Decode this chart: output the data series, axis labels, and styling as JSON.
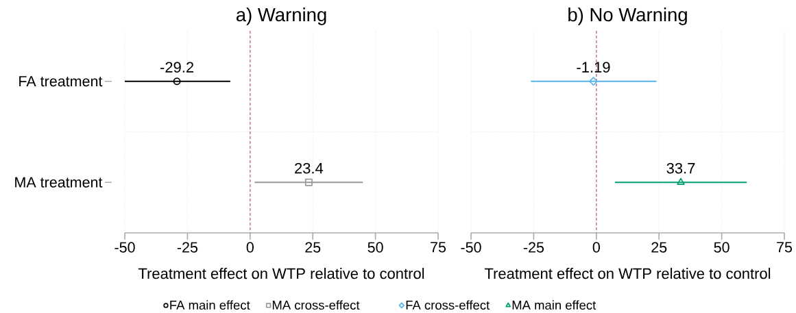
{
  "chart_data": [
    {
      "type": "scatter",
      "title": "a) Warning",
      "xlabel": "Treatment effect on WTP relative to control",
      "orientation": "horizontal",
      "categories": [
        "FA treatment",
        "MA treatment"
      ],
      "series": [
        {
          "name": "FA main effect",
          "color": "#000000",
          "marker": "circle",
          "values": [
            -29.2,
            null
          ],
          "errors": [
            [
              -50,
              -7.9
            ],
            null
          ]
        },
        {
          "name": "MA cross-effect",
          "color": "#999999",
          "marker": "square",
          "values": [
            null,
            23.4
          ],
          "errors": [
            null,
            [
              1.8,
              45.0
            ]
          ]
        }
      ],
      "xlim": [
        -50,
        75
      ],
      "xticks": [
        -50,
        -25,
        0,
        25,
        50,
        75
      ],
      "grid": true,
      "legend": "bottom",
      "data_labels": true,
      "ref_lines": [
        {
          "axis": "x",
          "value": 0,
          "color": "#cc79a7",
          "line_style": "dashed"
        }
      ]
    },
    {
      "type": "scatter",
      "title": "b) No Warning",
      "xlabel": "Treatment effect on WTP relative to control",
      "orientation": "horizontal",
      "categories": [
        null,
        null
      ],
      "series": [
        {
          "name": "FA cross-effect",
          "color": "#56b4e9",
          "marker": "diamond",
          "values": [
            -1.19,
            null
          ],
          "errors": [
            [
              -26.1,
              24.0
            ],
            null
          ]
        },
        {
          "name": "MA main effect",
          "color": "#009e73",
          "marker": "triangle",
          "values": [
            null,
            33.7
          ],
          "errors": [
            null,
            [
              7.4,
              60.0
            ]
          ]
        }
      ],
      "xlim": [
        -50,
        75
      ],
      "xticks": [
        -50,
        -25,
        0,
        25,
        50,
        75
      ],
      "grid": true,
      "legend": "bottom",
      "data_labels": true,
      "tick_labels": "x",
      "ref_lines": [
        {
          "axis": "x",
          "value": 0,
          "color": "#cc79a7",
          "line_style": "dashed"
        }
      ]
    }
  ]
}
